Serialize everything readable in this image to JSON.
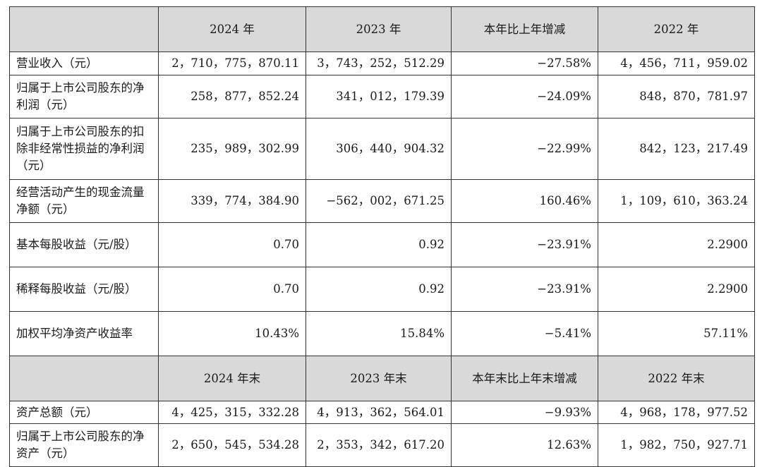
{
  "table": {
    "header1": [
      "",
      "2024 年",
      "2023 年",
      "本年比上年增减",
      "2022 年"
    ],
    "rows1": [
      {
        "label": "营业收入（元）",
        "v2024": "2，710，775，870.11",
        "v2023": "3，743，252，512.29",
        "change": "−27.58%",
        "v2022": "4，456，711，959.02"
      },
      {
        "label": "归属于上市公司股东的净利润（元）",
        "v2024": "258，877，852.24",
        "v2023": "341，012，179.39",
        "change": "−24.09%",
        "v2022": "848，870，781.97"
      },
      {
        "label": "归属于上市公司股东的扣除非经常性损益的净利润（元）",
        "v2024": "235，989，302.99",
        "v2023": "306，440，904.32",
        "change": "−22.99%",
        "v2022": "842，123，217.49"
      },
      {
        "label": "经营活动产生的现金流量净额（元）",
        "v2024": "339，774，384.90",
        "v2023": "−562，002，671.25",
        "change": "160.46%",
        "v2022": "1，109，610，363.24"
      },
      {
        "label": "基本每股收益（元/股）",
        "v2024": "0.70",
        "v2023": "0.92",
        "change": "−23.91%",
        "v2022": "2.2900"
      },
      {
        "label": "稀释每股收益（元/股）",
        "v2024": "0.70",
        "v2023": "0.92",
        "change": "−23.91%",
        "v2022": "2.2900"
      },
      {
        "label": "加权平均净资产收益率",
        "v2024": "10.43%",
        "v2023": "15.84%",
        "change": "−5.41%",
        "v2022": "57.11%"
      }
    ],
    "header2": [
      "",
      "2024 年末",
      "2023 年末",
      "本年末比上年末增减",
      "2022 年末"
    ],
    "rows2": [
      {
        "label": "资产总额（元）",
        "v2024": "4，425，315，332.28",
        "v2023": "4，913，362，564.01",
        "change": "−9.93%",
        "v2022": "4，968，178，977.52"
      },
      {
        "label": "归属于上市公司股东的净资产（元）",
        "v2024": "2，650，545，534.28",
        "v2023": "2，353，342，617.20",
        "change": "12.63%",
        "v2022": "1，982，750，927.71"
      }
    ]
  }
}
